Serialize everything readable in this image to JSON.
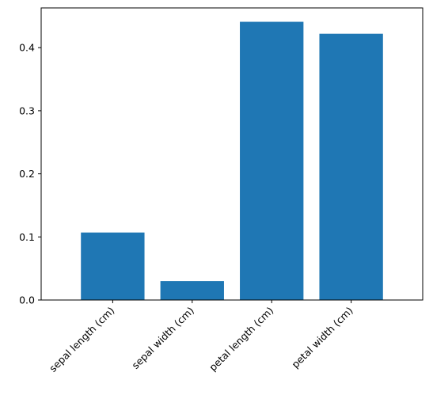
{
  "chart_data": {
    "type": "bar",
    "categories": [
      "sepal length (cm)",
      "sepal width (cm)",
      "petal length (cm)",
      "petal width (cm)"
    ],
    "values": [
      0.107,
      0.03,
      0.441,
      0.422
    ],
    "title": "",
    "xlabel": "",
    "ylabel": "",
    "ylim": [
      0,
      0.463
    ],
    "yticks": [
      "0.0",
      "0.1",
      "0.2",
      "0.3",
      "0.4"
    ],
    "grid": false,
    "bar_color": "#1f77b4"
  }
}
